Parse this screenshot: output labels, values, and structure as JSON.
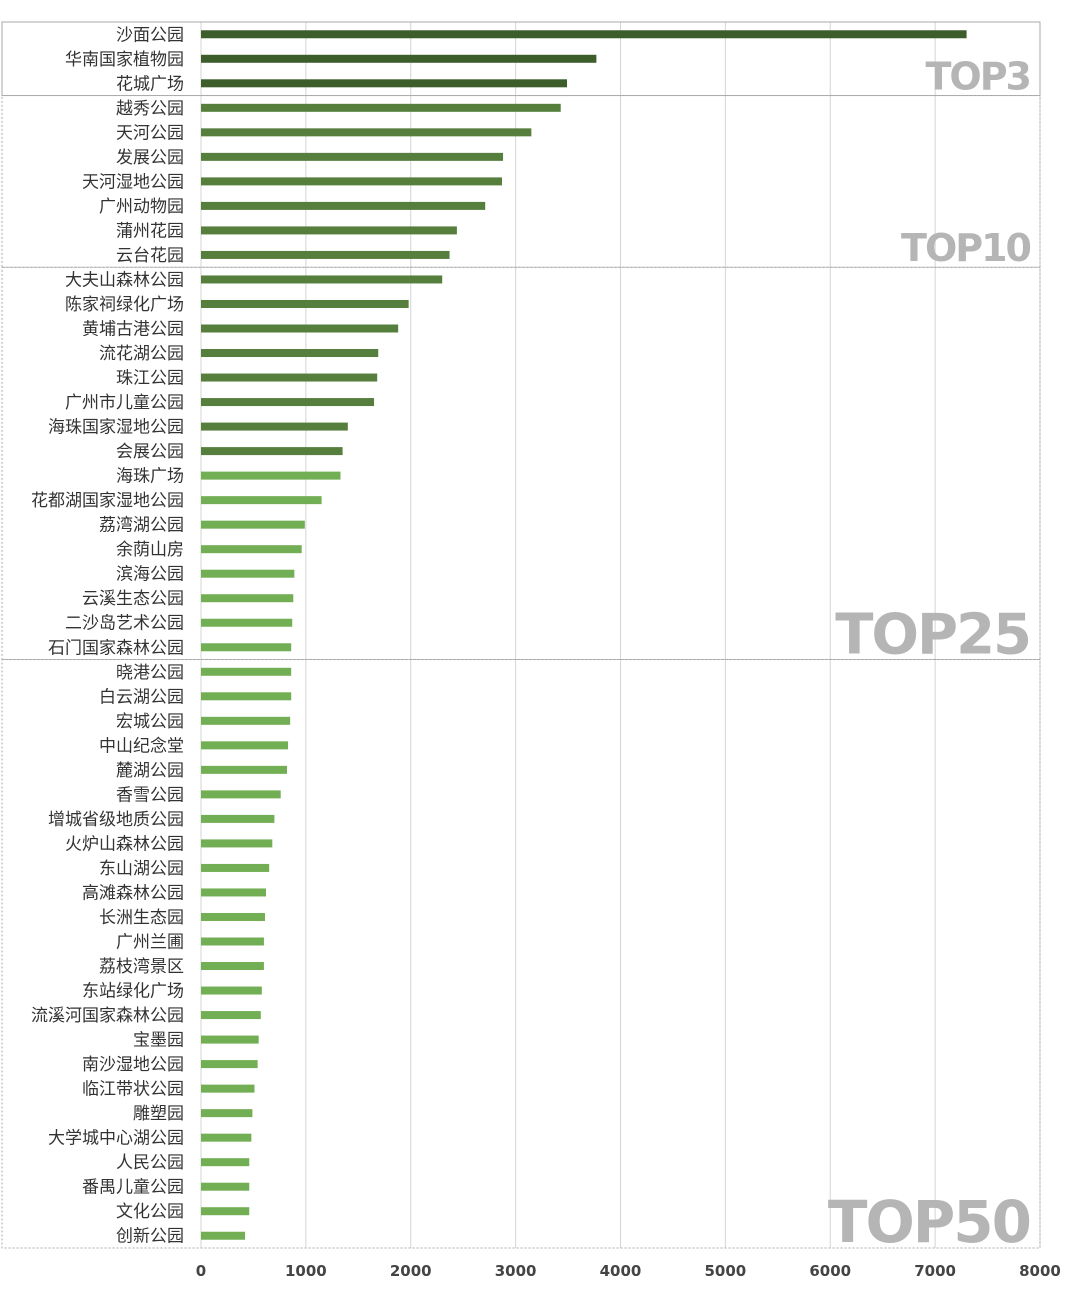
{
  "chart_data": {
    "type": "bar",
    "orientation": "horizontal",
    "title": "",
    "xlabel": "",
    "ylabel": "",
    "xlim": [
      0,
      8000
    ],
    "x_ticks": [
      0,
      1000,
      2000,
      3000,
      4000,
      5000,
      6000,
      7000,
      8000
    ],
    "grid": "vertical",
    "colors": {
      "dark": "#3d5e2b",
      "mid": "#567f3e",
      "light": "#72ae53",
      "grid": "#d4d4d4",
      "box": "#aaaaaa",
      "group_text": "#b5b5b5"
    },
    "categories": [
      "沙面公园",
      "华南国家植物园",
      "花城广场",
      "越秀公园",
      "天河公园",
      "发展公园",
      "天河湿地公园",
      "广州动物园",
      "蒲州花园",
      "云台花园",
      "大夫山森林公园",
      "陈家祠绿化广场",
      "黄埔古港公园",
      "流花湖公园",
      "珠江公园",
      "广州市儿童公园",
      "海珠国家湿地公园",
      "会展公园",
      "海珠广场",
      "花都湖国家湿地公园",
      "荔湾湖公园",
      "余荫山房",
      "滨海公园",
      "云溪生态公园",
      "二沙岛艺术公园",
      "石门国家森林公园",
      "晓港公园",
      "白云湖公园",
      "宏城公园",
      "中山纪念堂",
      "麓湖公园",
      "香雪公园",
      "增城省级地质公园",
      "火炉山森林公园",
      "东山湖公园",
      "高滩森林公园",
      "长洲生态园",
      "广州兰圃",
      "荔枝湾景区",
      "东站绿化广场",
      "流溪河国家森林公园",
      "宝墨园",
      "南沙湿地公园",
      "临江带状公园",
      "雕塑园",
      "大学城中心湖公园",
      "人民公园",
      "番禺儿童公园",
      "文化公园",
      "创新公园"
    ],
    "values": [
      7300,
      3770,
      3490,
      3430,
      3150,
      2880,
      2870,
      2710,
      2440,
      2370,
      2300,
      1980,
      1880,
      1690,
      1680,
      1650,
      1400,
      1350,
      1330,
      1150,
      990,
      960,
      890,
      880,
      870,
      860,
      860,
      860,
      850,
      830,
      820,
      760,
      700,
      680,
      650,
      620,
      610,
      600,
      600,
      580,
      570,
      550,
      540,
      510,
      490,
      480,
      460,
      460,
      460,
      420
    ],
    "color_levels": [
      "dark",
      "dark",
      "dark",
      "mid",
      "mid",
      "mid",
      "mid",
      "mid",
      "mid",
      "mid",
      "mid",
      "mid",
      "mid",
      "mid",
      "mid",
      "mid",
      "mid",
      "mid",
      "light",
      "light",
      "light",
      "light",
      "light",
      "light",
      "light",
      "light",
      "light",
      "light",
      "light",
      "light",
      "light",
      "light",
      "light",
      "light",
      "light",
      "light",
      "light",
      "light",
      "light",
      "light",
      "light",
      "light",
      "light",
      "light",
      "light",
      "light",
      "light",
      "light",
      "light",
      "light"
    ],
    "groups": [
      {
        "label": "TOP3",
        "start": 0,
        "end": 2
      },
      {
        "label": "TOP10",
        "start": 3,
        "end": 9
      },
      {
        "label": "TOP25",
        "start": 10,
        "end": 25
      },
      {
        "label": "TOP50",
        "start": 26,
        "end": 49
      }
    ]
  }
}
